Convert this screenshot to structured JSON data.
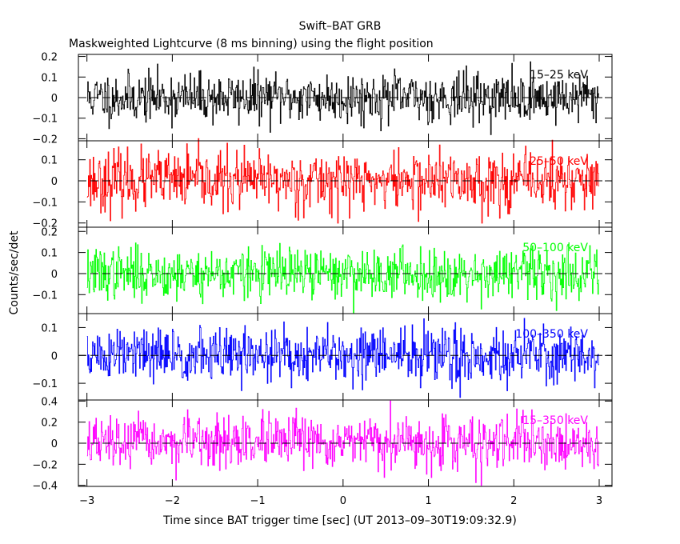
{
  "chart_data": {
    "type": "line",
    "title": "Swift–BAT GRB",
    "subtitle": "Maskweighted Lightcurve (8 ms binning) using the flight position",
    "xlabel": "Time since BAT trigger time [sec] (UT 2013–09–30T19:09:32.9)",
    "ylabel": "Counts/sec/det",
    "xlim": [
      -3.1,
      3.15
    ],
    "x_ticks": [
      -3,
      -2,
      -1,
      0,
      1,
      2,
      3
    ],
    "x_tick_labels": [
      "−3",
      "−2",
      "−1",
      "0",
      "1",
      "2",
      "3"
    ],
    "binning_sec": 0.008,
    "data_range": [
      -3.0,
      3.0
    ],
    "panels": [
      {
        "name": "15–25 keV",
        "color": "#000000",
        "ylim": [
          -0.21,
          0.21
        ],
        "y_ticks": [
          -0.2,
          -0.1,
          0,
          0.1,
          0.2
        ],
        "y_tick_labels": [
          "−0.2",
          "−0.1",
          "0",
          "0.1",
          "0.2"
        ],
        "sigma": 0.06,
        "seed": 11
      },
      {
        "name": "25–50 keV",
        "color": "#ff0000",
        "ylim": [
          -0.22,
          0.19
        ],
        "y_ticks": [
          -0.2,
          -0.1,
          0,
          0.1
        ],
        "y_tick_labels": [
          "−0.2",
          "−0.1",
          "0",
          "0.1"
        ],
        "sigma": 0.07,
        "seed": 23
      },
      {
        "name": "50–100 keV",
        "color": "#00ff00",
        "ylim": [
          -0.19,
          0.22
        ],
        "y_ticks": [
          -0.1,
          0,
          0.1,
          0.2
        ],
        "y_tick_labels": [
          "−0.1",
          "0",
          "0.1",
          "0.2"
        ],
        "sigma": 0.06,
        "seed": 37
      },
      {
        "name": "100–350 keV",
        "color": "#0000ff",
        "ylim": [
          -0.16,
          0.15
        ],
        "y_ticks": [
          -0.1,
          0,
          0.1
        ],
        "y_tick_labels": [
          "−0.1",
          "0",
          "0.1"
        ],
        "sigma": 0.05,
        "seed": 51
      },
      {
        "name": "15–350 keV",
        "color": "#ff00ff",
        "ylim": [
          -0.41,
          0.41
        ],
        "y_ticks": [
          -0.4,
          -0.2,
          0,
          0.2,
          0.4
        ],
        "y_tick_labels": [
          "−0.4",
          "−0.2",
          "0",
          "0.2",
          "0.4"
        ],
        "sigma": 0.12,
        "seed": 67
      }
    ]
  }
}
